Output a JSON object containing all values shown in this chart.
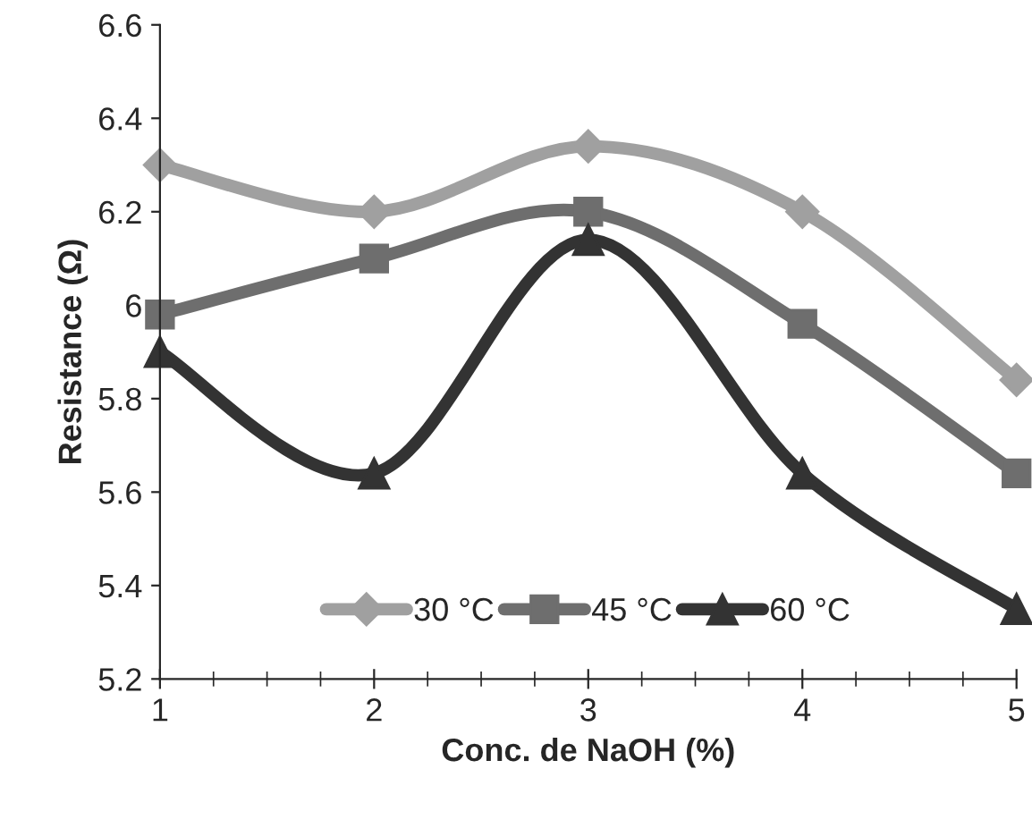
{
  "chart_data": {
    "type": "line",
    "xlabel": "Conc. de NaOH (%)",
    "ylabel": "Resistance (Ω)",
    "x": [
      1,
      2,
      3,
      4,
      5
    ],
    "xlim": [
      1,
      5
    ],
    "xticks": [
      1,
      2,
      3,
      4,
      5
    ],
    "ylim": [
      5.2,
      6.6
    ],
    "yticks": [
      5.2,
      5.4,
      5.6,
      5.8,
      6,
      6.2,
      6.4,
      6.6
    ],
    "grid": false,
    "legend": "bottom",
    "line_style": "solid",
    "series": [
      {
        "name": "30 °C",
        "color": "#a0a0a0",
        "marker": "diamond",
        "values": [
          6.3,
          6.2,
          6.34,
          6.2,
          5.84
        ]
      },
      {
        "name": "45 °C",
        "color": "#6e6e6e",
        "marker": "square",
        "values": [
          5.98,
          6.1,
          6.2,
          5.96,
          5.64
        ]
      },
      {
        "name": "60 °C",
        "color": "#333333",
        "marker": "triangle",
        "values": [
          5.9,
          5.64,
          6.14,
          5.64,
          5.35
        ]
      }
    ]
  }
}
